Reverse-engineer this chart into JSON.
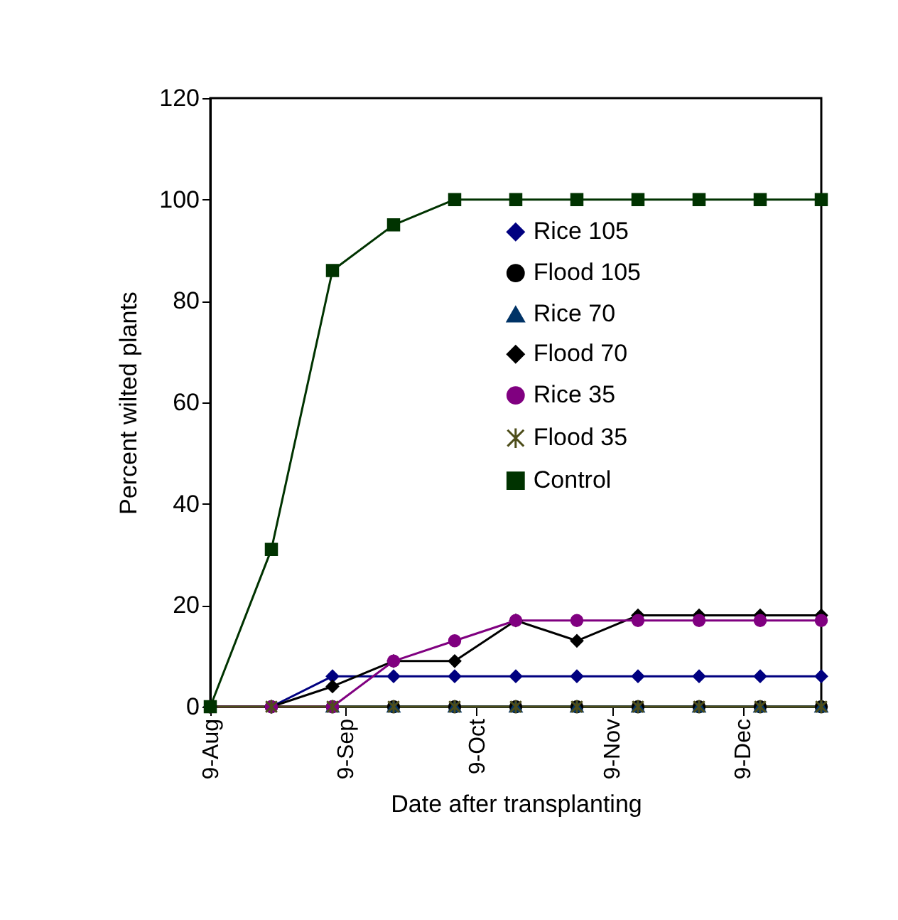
{
  "chart_data": {
    "type": "line",
    "xlabel": "Date after transplanting",
    "ylabel": "Percent wilted plants",
    "x": [
      "--08-09",
      "--08-23",
      "--09-06",
      "--09-20",
      "--10-04",
      "--10-18",
      "--11-01",
      "--11-15",
      "--11-29",
      "--12-13",
      "--12-27"
    ],
    "xlim": [
      "--08-09",
      "--12-27"
    ],
    "xticks": [
      {
        "value": "--08-09",
        "label": "9-Aug"
      },
      {
        "value": "--09-09",
        "label": "9-Sep"
      },
      {
        "value": "--10-09",
        "label": "9-Oct"
      },
      {
        "value": "--11-09",
        "label": "9-Nov"
      },
      {
        "value": "--12-09",
        "label": "9-Dec"
      }
    ],
    "ylim": [
      0,
      120
    ],
    "yticks": [
      0,
      20,
      40,
      60,
      80,
      100,
      120
    ],
    "grid": false,
    "legend": "right",
    "series": [
      {
        "name": "Rice 105",
        "color": "#000080",
        "marker": "diamond",
        "values": [
          0,
          0,
          6,
          6,
          6,
          6,
          6,
          6,
          6,
          6,
          6
        ]
      },
      {
        "name": "Flood 105",
        "color": "#000000",
        "marker": "circle",
        "values": [
          0,
          0,
          0,
          0,
          0,
          0,
          0,
          0,
          0,
          0,
          0
        ]
      },
      {
        "name": "Rice 70",
        "color": "#003366",
        "marker": "triangle",
        "values": [
          null,
          null,
          0,
          0,
          0,
          0,
          0,
          0,
          0,
          0,
          0
        ]
      },
      {
        "name": "Flood 70",
        "color": "#000000",
        "marker": "diamond",
        "values": [
          0,
          0,
          4,
          9,
          9,
          17,
          13,
          18,
          18,
          18,
          18
        ]
      },
      {
        "name": "Rice 35",
        "color": "#800080",
        "marker": "circle",
        "values": [
          0,
          0,
          0,
          9,
          13,
          17,
          17,
          17,
          17,
          17,
          17
        ]
      },
      {
        "name": "Flood 35",
        "color": "#4d4d1a",
        "marker": "cross",
        "values": [
          0,
          0,
          0,
          0,
          0,
          0,
          0,
          0,
          0,
          0,
          0
        ]
      },
      {
        "name": "Control",
        "color": "#003300",
        "marker": "square",
        "values": [
          0,
          31,
          86,
          95,
          100,
          100,
          100,
          100,
          100,
          100,
          100
        ]
      }
    ]
  }
}
